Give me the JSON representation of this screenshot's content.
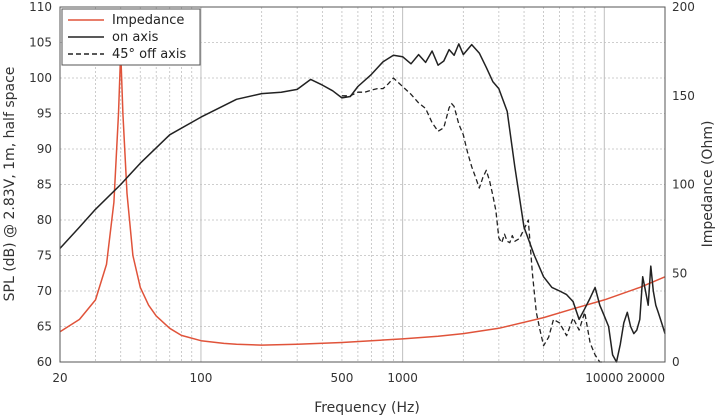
{
  "chart_data": {
    "type": "line",
    "title": "",
    "xlabel": "Frequency (Hz)",
    "ylabel": "SPL (dB) @ 2.83V, 1m, half space",
    "y2label": "Impedance (Ohm)",
    "x_scale": "log",
    "xlim": [
      20,
      20000
    ],
    "ylim": [
      60,
      110
    ],
    "y2lim": [
      0,
      200
    ],
    "grid": true,
    "legend_position": "top-left",
    "x_tick_labels": [
      "20",
      "100",
      "500",
      "1000",
      "10000",
      "20000"
    ],
    "x_tick_values": [
      20,
      100,
      500,
      1000,
      10000,
      20000
    ],
    "y_tick_values": [
      60,
      65,
      70,
      75,
      80,
      85,
      90,
      95,
      100,
      105,
      110
    ],
    "y2_tick_values": [
      0,
      50,
      100,
      150,
      200
    ],
    "colors": {
      "impedance": "#e0533a",
      "spl": "#222222",
      "grid": "#bfbfbf"
    },
    "series": [
      {
        "name": "Impedance",
        "axis": "right",
        "style": "solid",
        "x": [
          20,
          25,
          30,
          34,
          37,
          39,
          40,
          41,
          43,
          46,
          50,
          55,
          60,
          70,
          80,
          100,
          130,
          150,
          200,
          300,
          500,
          700,
          1000,
          1500,
          2000,
          3000,
          5000,
          7000,
          10000,
          15000,
          20000
        ],
        "y": [
          17,
          24,
          35,
          55,
          90,
          140,
          175,
          140,
          95,
          60,
          42,
          32,
          26,
          19,
          15,
          12,
          10.5,
          10,
          9.5,
          10,
          11,
          12,
          13,
          14.5,
          16,
          19,
          25,
          30,
          35,
          42,
          48
        ]
      },
      {
        "name": "on axis",
        "axis": "left",
        "style": "solid",
        "x": [
          20,
          25,
          30,
          40,
          50,
          70,
          100,
          150,
          200,
          250,
          300,
          350,
          400,
          450,
          500,
          550,
          600,
          700,
          800,
          900,
          1000,
          1100,
          1200,
          1300,
          1400,
          1500,
          1600,
          1700,
          1800,
          1900,
          2000,
          2200,
          2400,
          2600,
          2800,
          3000,
          3300,
          3600,
          4000,
          4500,
          5000,
          5500,
          6000,
          6500,
          7000,
          7500,
          8000,
          8500,
          9000,
          9500,
          10000,
          10500,
          11000,
          11500,
          12000,
          12500,
          13000,
          13500,
          14000,
          14500,
          15000,
          15500,
          16000,
          16500,
          17000,
          17500,
          18000,
          18500,
          19000,
          19500,
          20000
        ],
        "y": [
          76,
          79,
          81.5,
          85,
          88,
          92,
          94.5,
          97,
          97.8,
          98,
          98.4,
          99.8,
          99,
          98.2,
          97.2,
          97.4,
          98.8,
          100.5,
          102.3,
          103.2,
          103,
          102,
          103.3,
          102.2,
          103.8,
          101.8,
          102.4,
          104,
          103.2,
          104.8,
          103.3,
          104.7,
          103.5,
          101.5,
          99.5,
          98.5,
          95.3,
          87.5,
          79,
          75,
          72,
          70.5,
          70,
          69.5,
          68.5,
          66,
          67.5,
          69,
          70.5,
          68,
          66.5,
          65,
          61,
          60,
          62.5,
          65.5,
          67,
          65,
          64,
          64.5,
          66,
          72,
          70,
          68,
          73.5,
          70,
          68,
          67,
          66,
          65,
          64
        ]
      },
      {
        "name": "45° off axis",
        "axis": "left",
        "style": "dashed",
        "x": [
          500,
          550,
          600,
          650,
          700,
          750,
          800,
          850,
          900,
          1000,
          1100,
          1200,
          1300,
          1400,
          1500,
          1600,
          1700,
          1750,
          1800,
          1900,
          2000,
          2100,
          2200,
          2300,
          2400,
          2500,
          2600,
          2700,
          2800,
          2900,
          3000,
          3100,
          3200,
          3300,
          3400,
          3500,
          3600,
          3800,
          4000,
          4200,
          4400,
          4600,
          4800,
          5000,
          5300,
          5600,
          6000,
          6500,
          7000,
          7500,
          8000,
          8500,
          9000,
          9500,
          10000
        ],
        "y": [
          97.5,
          97.5,
          98,
          98,
          98.3,
          98.5,
          98.5,
          99.2,
          100,
          98.8,
          97.7,
          96.5,
          95.7,
          93.7,
          92.5,
          93,
          95.8,
          96.4,
          96,
          93.5,
          92,
          89.5,
          87.5,
          86,
          84.5,
          86,
          87,
          85.5,
          83.5,
          81.3,
          77.5,
          76.8,
          78,
          77,
          76.8,
          77.8,
          77,
          77.4,
          78.7,
          80,
          72.5,
          67,
          64.5,
          62.3,
          63.5,
          66,
          65.5,
          63.7,
          66.2,
          64.5,
          67,
          62.7,
          61,
          59.5,
          59.5
        ]
      }
    ]
  }
}
